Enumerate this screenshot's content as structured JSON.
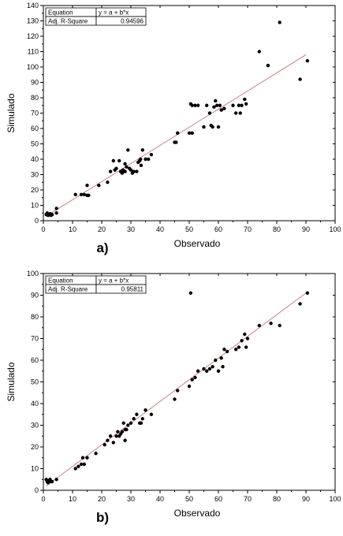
{
  "chart_data": [
    {
      "type": "scatter",
      "panel_label": "a)",
      "xlabel": "Observado",
      "ylabel": "Simulado",
      "xlim": [
        0,
        100
      ],
      "ylim": [
        0,
        140
      ],
      "xticks": [
        0,
        10,
        20,
        30,
        40,
        50,
        60,
        70,
        80,
        90,
        100
      ],
      "yticks": [
        0,
        10,
        20,
        30,
        40,
        50,
        60,
        70,
        80,
        90,
        100,
        110,
        120,
        130,
        140
      ],
      "grid": false,
      "fit_table": {
        "rows": [
          {
            "key": "Equation",
            "value": "y = a + b*x"
          },
          {
            "key": "Adj. R-Square",
            "value": "0.94596"
          }
        ]
      },
      "fit_line": {
        "x": [
          1,
          90
        ],
        "y": [
          3,
          108
        ],
        "color": "#d08080"
      },
      "points": {
        "x": [
          1,
          1.3,
          1.6,
          2,
          2.3,
          2.6,
          3,
          4.5,
          4.5,
          11,
          13,
          14,
          15,
          15,
          15.5,
          19,
          22,
          23,
          24,
          24.5,
          25,
          26,
          26.5,
          27,
          27.3,
          27.5,
          28,
          28,
          28.5,
          29,
          29.5,
          30,
          30.5,
          31,
          32,
          32.5,
          33,
          33.3,
          33.5,
          34,
          35,
          36,
          37,
          45,
          45.5,
          46,
          50,
          50.5,
          51,
          51,
          52,
          53,
          55,
          56,
          57,
          57.5,
          58,
          58.5,
          59,
          59.5,
          60,
          60.5,
          61,
          62,
          65,
          66,
          67,
          67.5,
          68,
          69,
          69.5,
          74,
          77,
          81,
          88,
          90.5
        ],
        "y": [
          4,
          5,
          3.5,
          4,
          4.5,
          3.5,
          4,
          5,
          8,
          17,
          17,
          17,
          16.5,
          23,
          16.5,
          23,
          25,
          32,
          39,
          33,
          34,
          39,
          32,
          31,
          33,
          32,
          32,
          37,
          35,
          46,
          34,
          33,
          31,
          32,
          32,
          38,
          39,
          40,
          36,
          46,
          40,
          40,
          43,
          51,
          51,
          57,
          57,
          76,
          57,
          75,
          75,
          75,
          61,
          75,
          70,
          62,
          61,
          74,
          78,
          75,
          61,
          75,
          72,
          73,
          75,
          70,
          75,
          70,
          75,
          79,
          76,
          110,
          101,
          129,
          92,
          104
        ]
      }
    },
    {
      "type": "scatter",
      "panel_label": "b)",
      "xlabel": "Observado",
      "ylabel": "Simulado",
      "xlim": [
        0,
        100
      ],
      "ylim": [
        0,
        100
      ],
      "xticks": [
        0,
        10,
        20,
        30,
        40,
        50,
        60,
        70,
        80,
        90,
        100
      ],
      "yticks": [
        0,
        10,
        20,
        30,
        40,
        50,
        60,
        70,
        80,
        90,
        100
      ],
      "grid": false,
      "fit_table": {
        "rows": [
          {
            "key": "Equation",
            "value": "y = a + b*x"
          },
          {
            "key": "Adj. R-Square",
            "value": "0.95811"
          }
        ]
      },
      "fit_line": {
        "x": [
          1,
          90
        ],
        "y": [
          2,
          91
        ],
        "color": "#d08080"
      },
      "points": {
        "x": [
          1,
          1.3,
          1.6,
          2,
          2.3,
          2.6,
          3,
          4.5,
          11,
          12,
          13,
          13.5,
          14,
          15,
          18,
          21,
          22,
          23,
          24,
          25,
          25.5,
          26,
          26.5,
          27,
          27.5,
          28,
          28,
          28.5,
          29,
          30,
          31,
          32,
          33,
          33.5,
          34,
          35,
          37,
          45,
          46,
          50,
          50.5,
          51,
          52,
          53,
          55,
          56,
          57,
          58,
          59,
          60,
          61,
          61.5,
          62,
          63,
          66,
          67,
          68,
          69,
          69.5,
          70,
          74,
          78,
          81,
          88,
          90.5
        ],
        "y": [
          5,
          4,
          3.5,
          4.5,
          5,
          4,
          4,
          5,
          10,
          11,
          12,
          15,
          12,
          15,
          17,
          21,
          23,
          25,
          22,
          25,
          27,
          25,
          26,
          27,
          31,
          28,
          23,
          28,
          30,
          31,
          33,
          35,
          31,
          31,
          33,
          37,
          35,
          42,
          46,
          48,
          91,
          51,
          52,
          55,
          56,
          55,
          56,
          57,
          60,
          55,
          61,
          57,
          65,
          64,
          65,
          66,
          69,
          72,
          66,
          70,
          76,
          77,
          76,
          86,
          91
        ]
      }
    }
  ]
}
